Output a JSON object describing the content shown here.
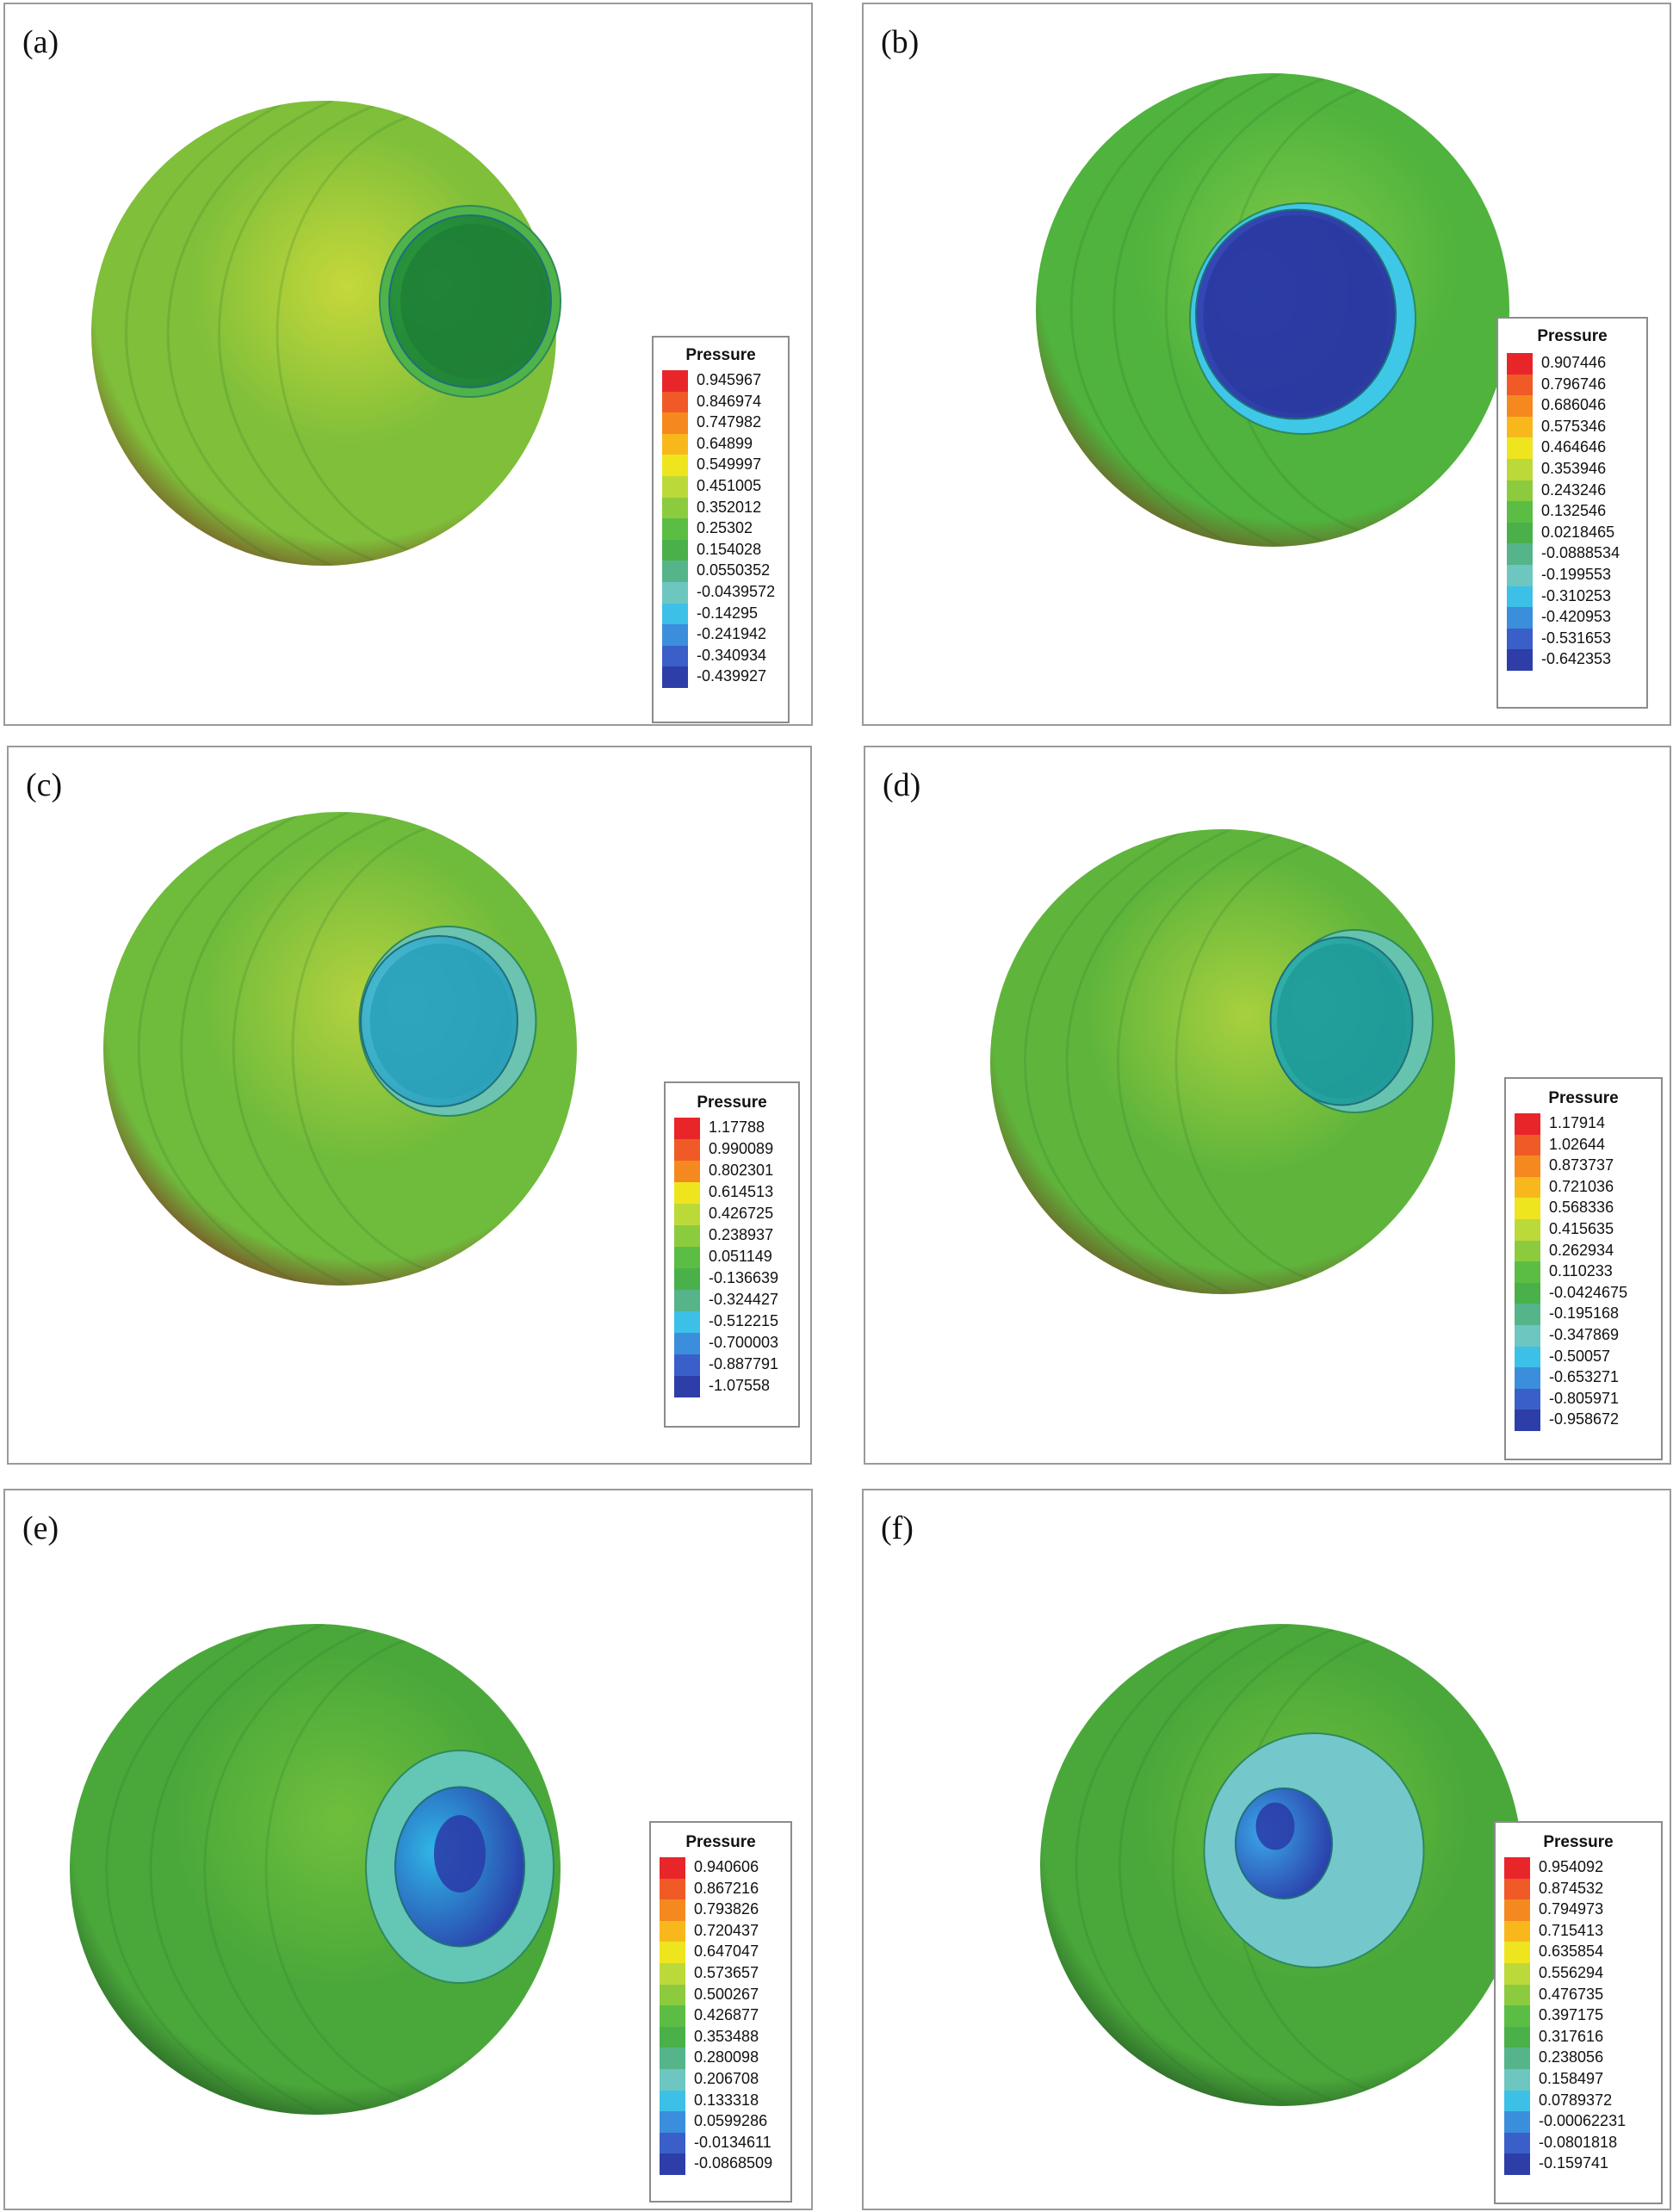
{
  "figure": {
    "panels": [
      {
        "label": "(a)",
        "legend": {
          "title": "Pressure",
          "values": [
            "0.945967",
            "0.846974",
            "0.747982",
            "0.64899",
            "0.549997",
            "0.451005",
            "0.352012",
            "0.25302",
            "0.154028",
            "0.0550352",
            "-0.0439572",
            "-0.14295",
            "-0.241942",
            "-0.340934",
            "-0.439927"
          ]
        },
        "colors": {
          "sphere_light": "#c6d83a",
          "sphere_mid": "#7fbf3a",
          "sphere_dark": "#7a6a2a",
          "spot_rim": "#4fb34a",
          "spot_inner": "#2a9a3c",
          "spot_core": "#1f7f36"
        }
      },
      {
        "label": "(b)",
        "legend": {
          "title": "Pressure",
          "values": [
            "0.907446",
            "0.796746",
            "0.686046",
            "0.575346",
            "0.464646",
            "0.353946",
            "0.243246",
            "0.132546",
            "0.0218465",
            "-0.0888534",
            "-0.199553",
            "-0.310253",
            "-0.420953",
            "-0.531653",
            "-0.642353"
          ]
        },
        "colors": {
          "sphere_light": "#7fca48",
          "sphere_mid": "#4fb33d",
          "sphere_dark": "#6a6a2a",
          "spot_rim": "#3fc7e8",
          "spot_inner": "#3a4ec0",
          "spot_core": "#2a3aa0"
        }
      },
      {
        "label": "(c)",
        "legend": {
          "title": "Pressure",
          "values": [
            "1.17788",
            "0.990089",
            "0.802301",
            "0.614513",
            "0.426725",
            "0.238937",
            "0.051149",
            "-0.136639",
            "-0.324427",
            "-0.512215",
            "-0.700003",
            "-0.887791",
            "-1.07558"
          ]
        },
        "colors": {
          "sphere_light": "#b4d23e",
          "sphere_mid": "#6fbb3c",
          "sphere_dark": "#7a5a2a",
          "spot_rim": "#6cc3b0",
          "spot_inner": "#4fc0d8",
          "spot_core": "#2aa0b8"
        }
      },
      {
        "label": "(d)",
        "legend": {
          "title": "Pressure",
          "values": [
            "1.17914",
            "1.02644",
            "0.873737",
            "0.721036",
            "0.568336",
            "0.415635",
            "0.262934",
            "0.110233",
            "-0.0424675",
            "-0.195168",
            "-0.347869",
            "-0.50057",
            "-0.653271",
            "-0.805971",
            "-0.958672"
          ]
        },
        "colors": {
          "sphere_light": "#a8d03e",
          "sphere_mid": "#5fb53c",
          "sphere_dark": "#6a6a2a",
          "spot_rim": "#66c4ae",
          "spot_inner": "#3ab8b0",
          "spot_core": "#1f9a98"
        }
      },
      {
        "label": "(e)",
        "legend": {
          "title": "Pressure",
          "values": [
            "0.940606",
            "0.867216",
            "0.793826",
            "0.720437",
            "0.647047",
            "0.573657",
            "0.500267",
            "0.426877",
            "0.353488",
            "0.280098",
            "0.206708",
            "0.133318",
            "0.0599286",
            "-0.0134611",
            "-0.0868509"
          ]
        },
        "colors": {
          "sphere_light": "#6fbf3c",
          "sphere_mid": "#4aa83a",
          "sphere_dark": "#2f6e2a",
          "spot_rim": "#64c6b4",
          "spot_inner": "#2fb8e6",
          "spot_core": "#2a3aa8"
        }
      },
      {
        "label": "(f)",
        "legend": {
          "title": "Pressure",
          "values": [
            "0.954092",
            "0.874532",
            "0.794973",
            "0.715413",
            "0.635854",
            "0.556294",
            "0.476735",
            "0.397175",
            "0.317616",
            "0.238056",
            "0.158497",
            "0.0789372",
            "-0.00062231",
            "-0.0801818",
            "-0.159741"
          ]
        },
        "colors": {
          "sphere_light": "#6fbf3c",
          "sphere_mid": "#4aa83a",
          "sphere_dark": "#2f6e2a",
          "spot_rim": "#74c8cc",
          "spot_inner": "#3aa8e8",
          "spot_core": "#2a3aa8"
        }
      }
    ],
    "colormap": [
      "#e8262a",
      "#f05a26",
      "#f5891f",
      "#f8b81c",
      "#eee51f",
      "#bcd93a",
      "#8ccb3e",
      "#5cbd44",
      "#4ab04a",
      "#55b48a",
      "#6ec6c0",
      "#3cc0e8",
      "#3a8edc",
      "#3a5fc8",
      "#2e3ea8"
    ]
  }
}
